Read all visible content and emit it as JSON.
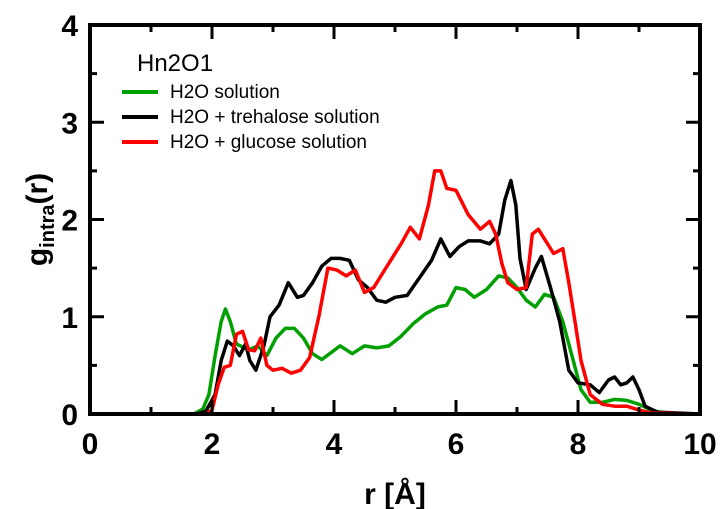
{
  "chart_data": {
    "type": "line",
    "title": "",
    "xlabel": "r [Å]",
    "ylabel_main": "g",
    "ylabel_sub": "intra",
    "ylabel_tail": "(r)",
    "xlim": [
      0,
      10
    ],
    "ylim": [
      0,
      4
    ],
    "xticks": [
      0,
      2,
      4,
      6,
      8,
      10
    ],
    "xtick_labels": [
      "0",
      "2",
      "4",
      "6",
      "8",
      "10"
    ],
    "yticks": [
      0,
      1,
      2,
      3,
      4
    ],
    "ytick_labels": [
      "0",
      "1",
      "2",
      "3",
      "4"
    ],
    "grid": false,
    "legend": {
      "title": "Hn2O1",
      "placement": "top-left"
    },
    "series": [
      {
        "name": "H2O solution",
        "color": "#00a000",
        "points": [
          [
            0,
            0
          ],
          [
            1.7,
            0
          ],
          [
            1.85,
            0.05
          ],
          [
            1.95,
            0.2
          ],
          [
            2.05,
            0.6
          ],
          [
            2.15,
            0.95
          ],
          [
            2.22,
            1.08
          ],
          [
            2.3,
            0.95
          ],
          [
            2.4,
            0.72
          ],
          [
            2.6,
            0.66
          ],
          [
            2.75,
            0.7
          ],
          [
            2.9,
            0.6
          ],
          [
            3.05,
            0.78
          ],
          [
            3.2,
            0.88
          ],
          [
            3.35,
            0.88
          ],
          [
            3.5,
            0.78
          ],
          [
            3.65,
            0.62
          ],
          [
            3.8,
            0.56
          ],
          [
            3.95,
            0.63
          ],
          [
            4.1,
            0.7
          ],
          [
            4.3,
            0.62
          ],
          [
            4.5,
            0.7
          ],
          [
            4.7,
            0.68
          ],
          [
            4.9,
            0.7
          ],
          [
            5.1,
            0.8
          ],
          [
            5.3,
            0.93
          ],
          [
            5.5,
            1.03
          ],
          [
            5.7,
            1.1
          ],
          [
            5.85,
            1.12
          ],
          [
            6.0,
            1.3
          ],
          [
            6.15,
            1.28
          ],
          [
            6.3,
            1.2
          ],
          [
            6.5,
            1.28
          ],
          [
            6.7,
            1.42
          ],
          [
            6.85,
            1.4
          ],
          [
            7.0,
            1.3
          ],
          [
            7.15,
            1.17
          ],
          [
            7.3,
            1.1
          ],
          [
            7.45,
            1.23
          ],
          [
            7.6,
            1.2
          ],
          [
            7.75,
            0.95
          ],
          [
            7.9,
            0.6
          ],
          [
            8.05,
            0.25
          ],
          [
            8.2,
            0.12
          ],
          [
            8.4,
            0.12
          ],
          [
            8.6,
            0.15
          ],
          [
            8.8,
            0.14
          ],
          [
            9.0,
            0.1
          ],
          [
            9.2,
            0.04
          ],
          [
            9.4,
            0.01
          ],
          [
            10,
            0
          ]
        ]
      },
      {
        "name": "H2O + trehalose solution",
        "color": "#000000",
        "points": [
          [
            0,
            0
          ],
          [
            1.75,
            0
          ],
          [
            1.9,
            0.03
          ],
          [
            2.05,
            0.2
          ],
          [
            2.15,
            0.55
          ],
          [
            2.25,
            0.75
          ],
          [
            2.35,
            0.7
          ],
          [
            2.45,
            0.6
          ],
          [
            2.55,
            0.72
          ],
          [
            2.62,
            0.55
          ],
          [
            2.72,
            0.45
          ],
          [
            2.85,
            0.7
          ],
          [
            2.95,
            1.0
          ],
          [
            3.1,
            1.12
          ],
          [
            3.25,
            1.35
          ],
          [
            3.4,
            1.2
          ],
          [
            3.5,
            1.22
          ],
          [
            3.65,
            1.35
          ],
          [
            3.8,
            1.52
          ],
          [
            3.95,
            1.6
          ],
          [
            4.1,
            1.6
          ],
          [
            4.25,
            1.58
          ],
          [
            4.4,
            1.38
          ],
          [
            4.55,
            1.3
          ],
          [
            4.7,
            1.17
          ],
          [
            4.85,
            1.15
          ],
          [
            5.0,
            1.2
          ],
          [
            5.2,
            1.22
          ],
          [
            5.4,
            1.4
          ],
          [
            5.6,
            1.58
          ],
          [
            5.75,
            1.8
          ],
          [
            5.9,
            1.62
          ],
          [
            6.05,
            1.72
          ],
          [
            6.2,
            1.78
          ],
          [
            6.4,
            1.78
          ],
          [
            6.55,
            1.75
          ],
          [
            6.7,
            1.85
          ],
          [
            6.8,
            2.2
          ],
          [
            6.9,
            2.4
          ],
          [
            6.98,
            2.15
          ],
          [
            7.05,
            1.6
          ],
          [
            7.15,
            1.28
          ],
          [
            7.3,
            1.5
          ],
          [
            7.4,
            1.62
          ],
          [
            7.55,
            1.3
          ],
          [
            7.7,
            0.95
          ],
          [
            7.85,
            0.45
          ],
          [
            8.0,
            0.32
          ],
          [
            8.2,
            0.3
          ],
          [
            8.35,
            0.22
          ],
          [
            8.5,
            0.35
          ],
          [
            8.6,
            0.38
          ],
          [
            8.7,
            0.3
          ],
          [
            8.8,
            0.32
          ],
          [
            8.9,
            0.38
          ],
          [
            9.0,
            0.25
          ],
          [
            9.1,
            0.08
          ],
          [
            9.3,
            0.02
          ],
          [
            10,
            0
          ]
        ]
      },
      {
        "name": "H2O + glucose solution",
        "color": "#ff0000",
        "points": [
          [
            0,
            0
          ],
          [
            1.9,
            0
          ],
          [
            2.0,
            0.04
          ],
          [
            2.1,
            0.3
          ],
          [
            2.2,
            0.48
          ],
          [
            2.3,
            0.5
          ],
          [
            2.4,
            0.82
          ],
          [
            2.5,
            0.85
          ],
          [
            2.6,
            0.66
          ],
          [
            2.7,
            0.65
          ],
          [
            2.8,
            0.78
          ],
          [
            2.9,
            0.5
          ],
          [
            3.0,
            0.45
          ],
          [
            3.15,
            0.47
          ],
          [
            3.3,
            0.42
          ],
          [
            3.45,
            0.45
          ],
          [
            3.6,
            0.58
          ],
          [
            3.75,
            1.0
          ],
          [
            3.9,
            1.5
          ],
          [
            4.05,
            1.48
          ],
          [
            4.2,
            1.42
          ],
          [
            4.35,
            1.48
          ],
          [
            4.5,
            1.25
          ],
          [
            4.65,
            1.3
          ],
          [
            4.8,
            1.45
          ],
          [
            4.95,
            1.6
          ],
          [
            5.1,
            1.75
          ],
          [
            5.25,
            1.92
          ],
          [
            5.4,
            1.8
          ],
          [
            5.55,
            2.15
          ],
          [
            5.65,
            2.5
          ],
          [
            5.75,
            2.5
          ],
          [
            5.85,
            2.32
          ],
          [
            6.0,
            2.3
          ],
          [
            6.2,
            2.05
          ],
          [
            6.4,
            1.9
          ],
          [
            6.55,
            1.98
          ],
          [
            6.65,
            1.85
          ],
          [
            6.75,
            1.55
          ],
          [
            6.85,
            1.35
          ],
          [
            7.0,
            1.28
          ],
          [
            7.15,
            1.3
          ],
          [
            7.25,
            1.85
          ],
          [
            7.35,
            1.9
          ],
          [
            7.45,
            1.8
          ],
          [
            7.6,
            1.65
          ],
          [
            7.75,
            1.7
          ],
          [
            7.85,
            1.35
          ],
          [
            7.95,
            0.95
          ],
          [
            8.05,
            0.55
          ],
          [
            8.2,
            0.2
          ],
          [
            8.4,
            0.1
          ],
          [
            8.6,
            0.08
          ],
          [
            8.8,
            0.08
          ],
          [
            9.0,
            0.04
          ],
          [
            9.2,
            0.01
          ],
          [
            10,
            0
          ]
        ]
      }
    ]
  }
}
